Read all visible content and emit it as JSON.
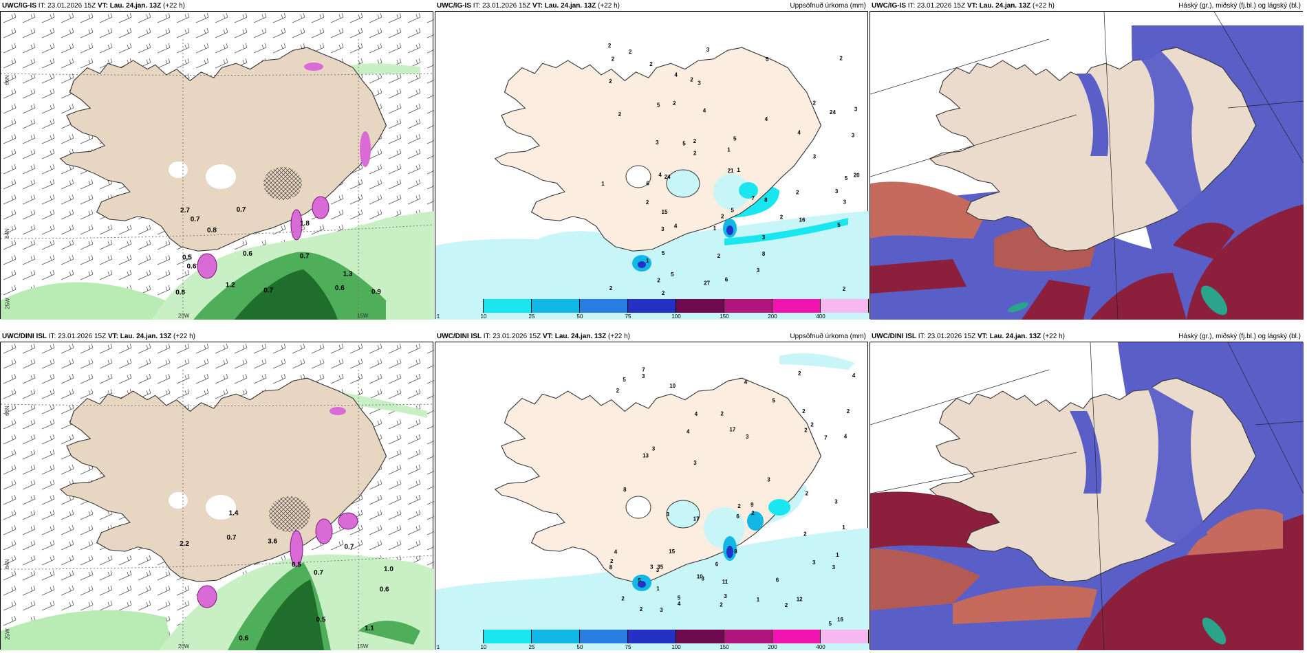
{
  "panels": [
    {
      "model": "UWC/IG-IS",
      "it": "IT: 23.01.2026 15Z",
      "vt": "VT: Lau. 24.jan. 13Z",
      "lead": "(+22 h)",
      "title": ""
    },
    {
      "model": "UWC/IG-IS",
      "it": "IT: 23.01.2026 15Z",
      "vt": "VT: Lau. 24.jan. 13Z",
      "lead": "(+22 h)",
      "title": "Uppsöfnuð úrkoma (mm)"
    },
    {
      "model": "UWC/IG-IS",
      "it": "IT: 23.01.2026 15Z",
      "vt": "VT: Lau. 24.jan. 13Z",
      "lead": "(+22 h)",
      "title": "Háský (gr.), miðský (fj.bl.) og lágský (bl.)"
    },
    {
      "model": "UWC/DINI ISL",
      "it": "IT: 23.01.2026 15Z",
      "vt": "VT: Lau. 24.jan. 13Z",
      "lead": "(+22 h)",
      "title": ""
    },
    {
      "model": "UWC/DINI ISL",
      "it": "IT: 23.01.2026 15Z",
      "vt": "VT: Lau. 24.jan. 13Z",
      "lead": "(+22 h)",
      "title": "Uppsöfnuð úrkoma (mm)"
    },
    {
      "model": "UWC/DINI ISL",
      "it": "IT: 23.01.2026 15Z",
      "vt": "VT: Lau. 24.jan. 13Z",
      "lead": "(+22 h)",
      "title": "Háský (gr.), miðský (fj.bl.) og lágský (bl.)"
    }
  ],
  "legend": {
    "ticks": [
      "1",
      "10",
      "25",
      "50",
      "75",
      "100",
      "150",
      "200",
      "400"
    ],
    "colors": [
      "#c8f5f7",
      "#19e6ee",
      "#11b8e6",
      "#2a7de0",
      "#2431c4",
      "#6d0b4e",
      "#b0157e",
      "#f013b0",
      "#f5b8f0"
    ]
  },
  "gridlabels": {
    "lat66": "66N",
    "lat64": "64N",
    "lon25": "25W",
    "lon20": "20W",
    "lon15": "15W"
  },
  "top_wind_values": [
    "0.7",
    "0.5",
    "0.7",
    "0.8",
    "1.8",
    "2.7",
    "1.2",
    "0.9",
    "0.7",
    "0.8",
    "0.7",
    "0.6",
    "0.6",
    "0.6",
    "1.3"
  ],
  "bot_wind_values": [
    "0.6",
    "0.5",
    "0.7",
    "3.6",
    "0.7",
    "0.6",
    "0.5",
    "1.1",
    "1.0",
    "0.7",
    "2.2",
    "1.4"
  ],
  "top_precip_values": [
    "2",
    "2",
    "1",
    "2",
    "3",
    "3",
    "3",
    "4",
    "2",
    "2",
    "3",
    "1",
    "2",
    "2",
    "2",
    "5",
    "1",
    "1",
    "2",
    "2",
    "3",
    "2",
    "5",
    "4",
    "6",
    "5",
    "15",
    "16",
    "27",
    "2",
    "7",
    "4",
    "24",
    "3",
    "21",
    "3",
    "2",
    "2",
    "8",
    "4",
    "5",
    "6",
    "8",
    "4",
    "2",
    "5",
    "5",
    "3",
    "3",
    "2",
    "20",
    "24",
    "2",
    "3",
    "2",
    "2",
    "2",
    "1",
    "2",
    "3",
    "4",
    "5",
    "5",
    "5"
  ],
  "bot_precip_values": [
    "2",
    "2",
    "1",
    "2",
    "2",
    "3",
    "4",
    "4",
    "11",
    "7",
    "2",
    "2",
    "3",
    "4",
    "5",
    "17",
    "13",
    "6",
    "2",
    "2",
    "8",
    "9",
    "2",
    "4",
    "6",
    "3",
    "17",
    "35",
    "10",
    "8",
    "8",
    "7",
    "1",
    "16",
    "15",
    "3",
    "12",
    "3",
    "5",
    "10",
    "6",
    "4",
    "5",
    "3",
    "3",
    "3",
    "3",
    "5",
    "5",
    "3",
    "2",
    "3",
    "2",
    "1",
    "1",
    "2",
    "4",
    "3",
    "2",
    "2",
    "2",
    "2",
    "4",
    "3",
    "3"
  ]
}
